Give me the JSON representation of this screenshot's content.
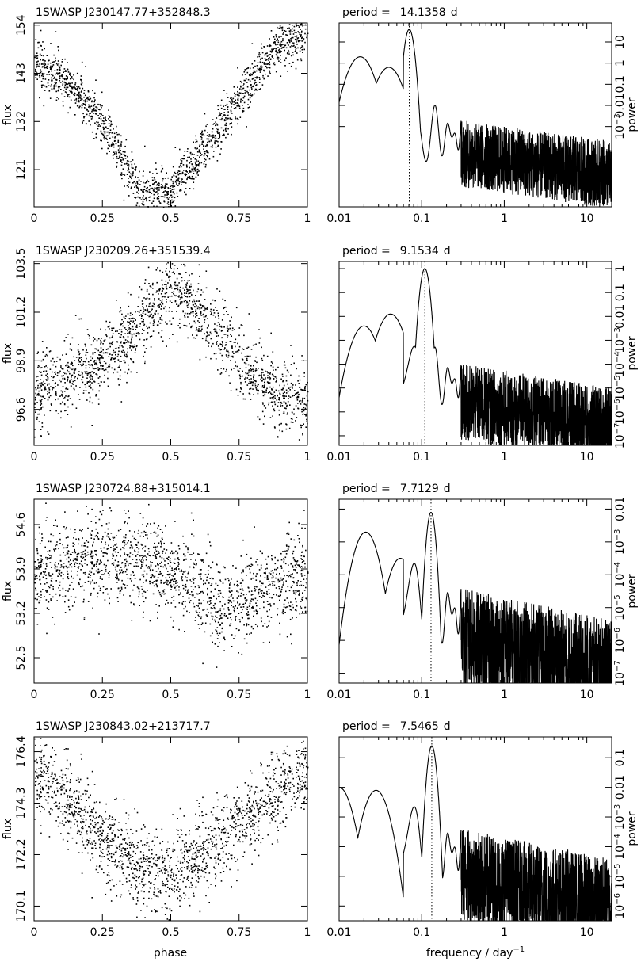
{
  "xlabel_left": "phase",
  "xlabel_right_prefix": "frequency / day",
  "xlabel_right_sup": "−1",
  "period_prefix": "period =",
  "period_unit": "d",
  "left_ylabel": "flux",
  "right_ylabel": "power",
  "phase_ticks": [
    "0",
    "0.25",
    "0.5",
    "0.75",
    "1"
  ],
  "freq_ticks": [
    "0.01",
    "0.1",
    "1",
    "10"
  ],
  "chart_data": [
    {
      "type": "scatter",
      "title": "1SWASP J230147.77+352848.3",
      "xlabel": "phase",
      "ylabel": "flux",
      "xlim": [
        0,
        1
      ],
      "ylim": [
        112.5,
        154.5
      ],
      "yticks": [
        "121",
        "132",
        "143",
        "154"
      ],
      "ytick_values": [
        121,
        132,
        143,
        154
      ],
      "profile": [
        [
          0,
          145
        ],
        [
          0.1,
          142
        ],
        [
          0.2,
          136
        ],
        [
          0.3,
          126
        ],
        [
          0.4,
          115
        ],
        [
          0.5,
          117
        ],
        [
          0.6,
          124
        ],
        [
          0.7,
          133
        ],
        [
          0.8,
          142
        ],
        [
          0.9,
          150
        ],
        [
          1,
          152
        ]
      ],
      "scatter_sd": 3.5,
      "periodogram": {
        "period_days": "14.1358",
        "period_value": 14.1358,
        "peak_frequency": 0.0707,
        "yticks": [
          "10^-3",
          "0.01",
          "0.1",
          "1",
          "10"
        ],
        "ytick_log": [
          -3,
          -2,
          -1,
          0,
          1
        ],
        "log_range": [
          -6.8,
          1.9
        ],
        "peak_log": 1.6,
        "low_freq_bumps": [
          [
            0.018,
            0.3
          ],
          [
            0.04,
            -0.2
          ]
        ],
        "noise_floor_log": -3.5
      }
    },
    {
      "type": "scatter",
      "title": "1SWASP J230209.26+351539.4",
      "xlabel": "phase",
      "ylabel": "flux",
      "xlim": [
        0,
        1
      ],
      "ylim": [
        94.9,
        103.6
      ],
      "yticks": [
        "96.6",
        "98.9",
        "101.2",
        "103.5"
      ],
      "ytick_values": [
        96.6,
        98.9,
        101.2,
        103.5
      ],
      "profile": [
        [
          0,
          97.5
        ],
        [
          0.1,
          98.0
        ],
        [
          0.2,
          98.6
        ],
        [
          0.3,
          99.6
        ],
        [
          0.4,
          100.8
        ],
        [
          0.5,
          102.3
        ],
        [
          0.6,
          101.4
        ],
        [
          0.7,
          99.8
        ],
        [
          0.8,
          98.2
        ],
        [
          0.9,
          97.3
        ],
        [
          1,
          97.0
        ]
      ],
      "scatter_sd": 1.1,
      "periodogram": {
        "period_days": "9.1534",
        "period_value": 9.1534,
        "peak_frequency": 0.1092,
        "yticks": [
          "10^-7",
          "10^-6",
          "10^-5",
          "10^-4",
          "10^-3",
          "0.01",
          "0.1",
          "1"
        ],
        "ytick_log": [
          -7,
          -6,
          -5,
          -4,
          -3,
          -2,
          -1,
          0
        ],
        "log_range": [
          -7.4,
          0.3
        ],
        "peak_log": 0.0,
        "low_freq_bumps": [
          [
            0.02,
            -2.4
          ],
          [
            0.042,
            -1.9
          ]
        ],
        "noise_floor_log": -4.8
      }
    },
    {
      "type": "scatter",
      "title": "1SWASP J230724.88+315014.1",
      "xlabel": "phase",
      "ylabel": "flux",
      "xlim": [
        0,
        1
      ],
      "ylim": [
        52.1,
        55.0
      ],
      "yticks": [
        "52.5",
        "53.2",
        "53.9",
        "54.6"
      ],
      "ytick_values": [
        52.5,
        53.2,
        53.9,
        54.6
      ],
      "profile": [
        [
          0,
          53.8
        ],
        [
          0.1,
          54.0
        ],
        [
          0.2,
          54.1
        ],
        [
          0.3,
          54.1
        ],
        [
          0.4,
          54.0
        ],
        [
          0.5,
          53.9
        ],
        [
          0.6,
          53.6
        ],
        [
          0.7,
          53.3
        ],
        [
          0.8,
          53.5
        ],
        [
          0.9,
          53.7
        ],
        [
          1,
          53.8
        ]
      ],
      "scatter_sd": 0.45,
      "periodogram": {
        "period_days": "7.7129",
        "period_value": 7.7129,
        "peak_frequency": 0.1297,
        "yticks": [
          "10^-7",
          "10^-6",
          "10^-5",
          "10^-4",
          "10^-3",
          "0.01"
        ],
        "ytick_log": [
          -7,
          -6,
          -5,
          -4,
          -3,
          -2
        ],
        "log_range": [
          -7.3,
          -1.7
        ],
        "peak_log": -2.1,
        "low_freq_bumps": [
          [
            0.021,
            -2.7
          ],
          [
            0.055,
            -3.5
          ]
        ],
        "noise_floor_log": -5.2
      }
    },
    {
      "type": "scatter",
      "title": "1SWASP J230843.02+213717.7",
      "xlabel": "phase",
      "ylabel": "flux",
      "xlim": [
        0,
        1
      ],
      "ylim": [
        169.5,
        177.0
      ],
      "yticks": [
        "170.1",
        "172.2",
        "174.3",
        "176.4"
      ],
      "ytick_values": [
        170.1,
        172.2,
        174.3,
        176.4
      ],
      "profile": [
        [
          0,
          175.5
        ],
        [
          0.1,
          174.8
        ],
        [
          0.2,
          173.4
        ],
        [
          0.3,
          172.3
        ],
        [
          0.4,
          171.6
        ],
        [
          0.5,
          171.4
        ],
        [
          0.6,
          172.2
        ],
        [
          0.7,
          173.0
        ],
        [
          0.8,
          173.9
        ],
        [
          0.9,
          174.9
        ],
        [
          1,
          175.6
        ]
      ],
      "scatter_sd": 1.1,
      "periodogram": {
        "period_days": "7.5465",
        "period_value": 7.5465,
        "peak_frequency": 0.1325,
        "yticks": [
          "10^-6",
          "10^-5",
          "10^-4",
          "10^-3",
          "0.01",
          "0.1"
        ],
        "ytick_log": [
          -6,
          -5,
          -4,
          -3,
          -2,
          -1
        ],
        "log_range": [
          -6.5,
          -0.3
        ],
        "peak_log": -0.6,
        "low_freq_bumps": [
          [
            0.01,
            -2.0
          ],
          [
            0.028,
            -2.1
          ]
        ],
        "noise_floor_log": -4.2
      }
    }
  ]
}
